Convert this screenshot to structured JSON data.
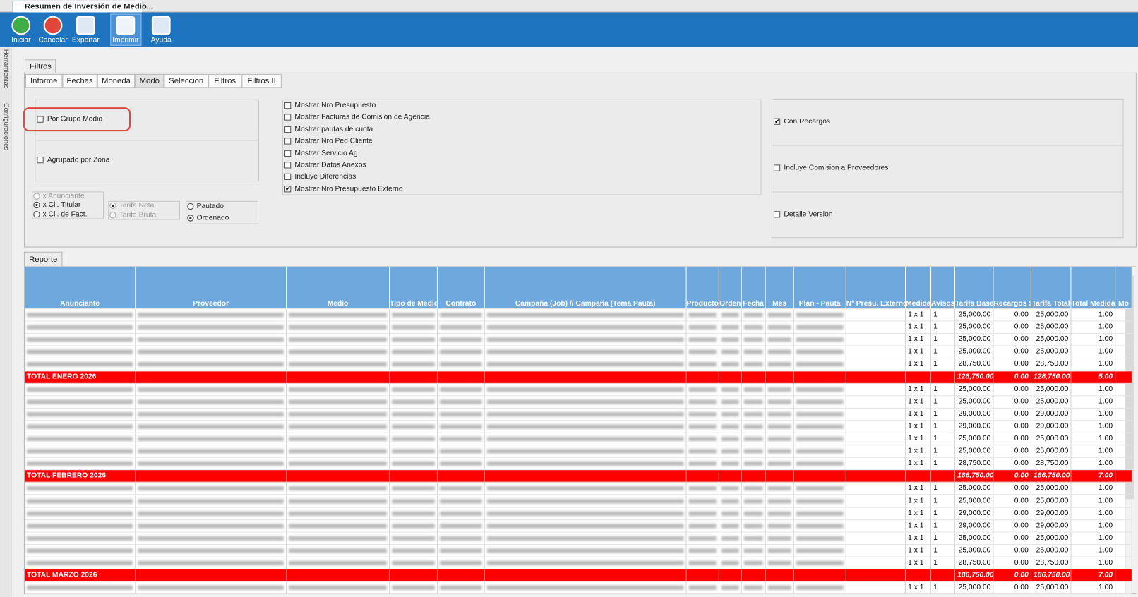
{
  "window_title": "Resumen de Inversión de Medio...",
  "toolbar": [
    "Iniciar",
    "Cancelar",
    "Exportar",
    "Imprimir",
    "Ayuda"
  ],
  "side_tabs": [
    "Herramientas",
    "Configuraciones"
  ],
  "filters": {
    "title": "Filtros",
    "tabs": [
      "Informe",
      "Fechas",
      "Moneda",
      "Modo",
      "Seleccion",
      "Filtros",
      "Filtros II"
    ],
    "active_tab": 3,
    "group_options": [
      {
        "label": "Por Grupo Medio",
        "checked": false
      },
      {
        "label": "Agrupado por Zona",
        "checked": false
      }
    ],
    "radio_groups": [
      [
        {
          "label": "x Anunciante",
          "selected": false,
          "disabled": true
        },
        {
          "label": "x Cli. Titular",
          "selected": true,
          "disabled": false
        },
        {
          "label": "x Cli. de Fact.",
          "selected": false,
          "disabled": false
        }
      ],
      [
        {
          "label": "Tarifa Neta",
          "selected": true,
          "disabled": true
        },
        {
          "label": "Tarifa Bruta",
          "selected": false,
          "disabled": true
        }
      ],
      [
        {
          "label": "Pautado",
          "selected": false,
          "disabled": false
        },
        {
          "label": "Ordenado",
          "selected": true,
          "disabled": false
        }
      ]
    ],
    "show_options": [
      {
        "label": "Mostrar Nro Presupuesto",
        "checked": false
      },
      {
        "label": "Mostrar Facturas de Comisión de Agencia",
        "checked": false
      },
      {
        "label": "Mostrar pautas de cuota",
        "checked": false
      },
      {
        "label": "Mostrar Nro Ped Cliente",
        "checked": false
      },
      {
        "label": "Mostrar Servicio Ag.",
        "checked": false
      },
      {
        "label": "Mostrar Datos Anexos",
        "checked": false
      },
      {
        "label": "Incluye Diferencias",
        "checked": false
      },
      {
        "label": "Mostrar Nro Presupuesto Externo",
        "checked": true
      }
    ],
    "right_options": [
      {
        "label": "Con Recargos",
        "checked": true
      },
      {
        "label": "Incluye Comision a Proveedores",
        "checked": false
      },
      {
        "label": "Detalle Versión",
        "checked": false
      }
    ]
  },
  "report": {
    "title": "Reporte",
    "columns": [
      "Anunciante",
      "Proveedor",
      "Medio",
      "Tipo de Medio",
      "Contrato",
      "Campaña (Job)  //  Campaña (Tema Pauta)",
      "Producto",
      "Orden",
      "Fecha",
      "Mes",
      "Plan - Pauta",
      "Nº Presu. Externo",
      "Medida",
      "Avisos",
      "Tarifa Base",
      "Recargos $",
      "Tarifa Total",
      "Total Medida",
      "Mo"
    ],
    "rows": [
      {
        "kind": "data",
        "values": [
          "1 x 1",
          "1",
          "25,000.00",
          "0.00",
          "25,000.00",
          "1.00"
        ]
      },
      {
        "kind": "data",
        "values": [
          "1 x 1",
          "1",
          "25,000.00",
          "0.00",
          "25,000.00",
          "1.00"
        ]
      },
      {
        "kind": "data",
        "values": [
          "1 x 1",
          "1",
          "25,000.00",
          "0.00",
          "25,000.00",
          "1.00"
        ]
      },
      {
        "kind": "data",
        "values": [
          "1 x 1",
          "1",
          "25,000.00",
          "0.00",
          "25,000.00",
          "1.00"
        ]
      },
      {
        "kind": "data",
        "values": [
          "1 x 1",
          "1",
          "28,750.00",
          "0.00",
          "28,750.00",
          "1.00"
        ]
      },
      {
        "kind": "total",
        "label": "TOTAL ENERO 2026",
        "values": [
          "128,750.00",
          "0.00",
          "128,750.00",
          "5.00"
        ]
      },
      {
        "kind": "data",
        "values": [
          "1 x 1",
          "1",
          "25,000.00",
          "0.00",
          "25,000.00",
          "1.00"
        ]
      },
      {
        "kind": "data",
        "values": [
          "1 x 1",
          "1",
          "25,000.00",
          "0.00",
          "25,000.00",
          "1.00"
        ]
      },
      {
        "kind": "data",
        "values": [
          "1 x 1",
          "1",
          "29,000.00",
          "0.00",
          "29,000.00",
          "1.00"
        ]
      },
      {
        "kind": "data",
        "values": [
          "1 x 1",
          "1",
          "29,000.00",
          "0.00",
          "29,000.00",
          "1.00"
        ]
      },
      {
        "kind": "data",
        "values": [
          "1 x 1",
          "1",
          "25,000.00",
          "0.00",
          "25,000.00",
          "1.00"
        ]
      },
      {
        "kind": "data",
        "values": [
          "1 x 1",
          "1",
          "25,000.00",
          "0.00",
          "25,000.00",
          "1.00"
        ]
      },
      {
        "kind": "data",
        "values": [
          "1 x 1",
          "1",
          "28,750.00",
          "0.00",
          "28,750.00",
          "1.00"
        ]
      },
      {
        "kind": "total",
        "label": "TOTAL FEBRERO 2026",
        "values": [
          "186,750.00",
          "0.00",
          "186,750.00",
          "7.00"
        ]
      },
      {
        "kind": "data",
        "values": [
          "1 x 1",
          "1",
          "25,000.00",
          "0.00",
          "25,000.00",
          "1.00"
        ]
      },
      {
        "kind": "data",
        "values": [
          "1 x 1",
          "1",
          "25,000.00",
          "0.00",
          "25,000.00",
          "1.00"
        ]
      },
      {
        "kind": "data",
        "values": [
          "1 x 1",
          "1",
          "29,000.00",
          "0.00",
          "29,000.00",
          "1.00"
        ]
      },
      {
        "kind": "data",
        "values": [
          "1 x 1",
          "1",
          "29,000.00",
          "0.00",
          "29,000.00",
          "1.00"
        ]
      },
      {
        "kind": "data",
        "values": [
          "1 x 1",
          "1",
          "25,000.00",
          "0.00",
          "25,000.00",
          "1.00"
        ]
      },
      {
        "kind": "data",
        "values": [
          "1 x 1",
          "1",
          "25,000.00",
          "0.00",
          "25,000.00",
          "1.00"
        ]
      },
      {
        "kind": "data",
        "values": [
          "1 x 1",
          "1",
          "28,750.00",
          "0.00",
          "28,750.00",
          "1.00"
        ]
      },
      {
        "kind": "total",
        "label": "TOTAL MARZO 2026",
        "values": [
          "186,750.00",
          "0.00",
          "186,750.00",
          "7.00"
        ]
      },
      {
        "kind": "data",
        "values": [
          "1 x 1",
          "1",
          "25,000.00",
          "0.00",
          "25,000.00",
          "1.00"
        ]
      }
    ]
  }
}
